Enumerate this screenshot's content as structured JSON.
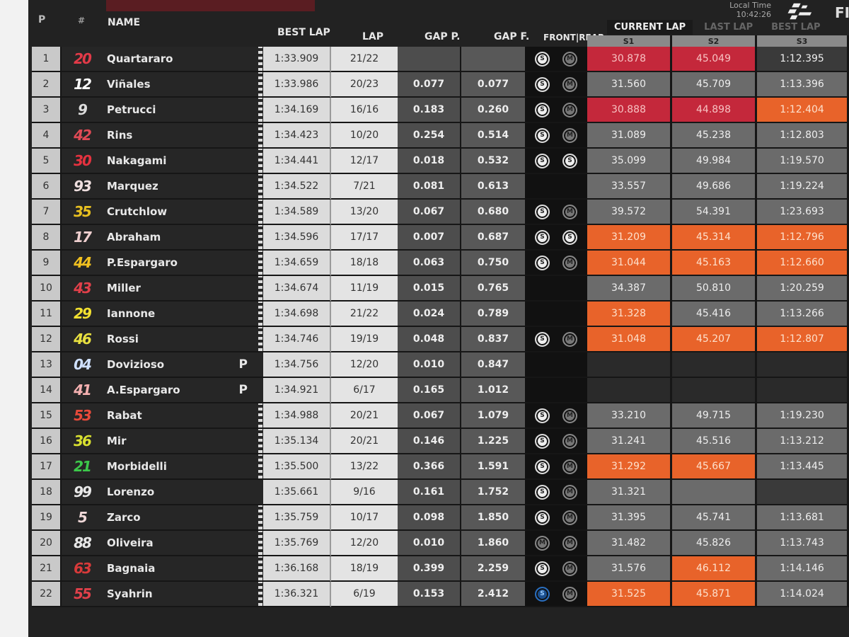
{
  "header": {
    "col_pos": "P",
    "col_num": "#",
    "col_name": "NAME",
    "col_best": "BEST LAP",
    "col_lap": "LAP",
    "col_gap_p": "GAP P.",
    "col_gap_f": "GAP F.",
    "col_tyres": "FRONT|REAR",
    "local_time_label": "Local Time",
    "local_time": "10:42:26",
    "logo_text": "MotoGP",
    "partial_text": "FI",
    "tabs": [
      "CURRENT LAP",
      "LAST LAP",
      "BEST LAP"
    ],
    "active_tab": "CURRENT LAP",
    "sectors": [
      "S1",
      "S2",
      "S3"
    ]
  },
  "colors": {
    "personal_best": "#e8632a",
    "overall_best": "#c4283b",
    "normal": "#6b6b6b"
  },
  "riders": [
    {
      "pos": "1",
      "num": "20",
      "num_color": "#e23a48",
      "name": "Quartararo",
      "pit": "",
      "flag": true,
      "best": "1:33.909",
      "lap": "21/22",
      "gap_p": "",
      "gap_f": "",
      "front": "S",
      "rear": "M",
      "s": [
        [
          "30.878",
          "red"
        ],
        [
          "45.049",
          "red"
        ],
        [
          "1:12.395",
          "dark"
        ]
      ]
    },
    {
      "pos": "2",
      "num": "12",
      "num_color": "#ffffff",
      "name": "Viñales",
      "pit": "",
      "flag": true,
      "best": "1:33.986",
      "lap": "20/23",
      "gap_p": "0.077",
      "gap_f": "0.077",
      "front": "S",
      "rear": "M",
      "s": [
        [
          "31.560",
          "grey"
        ],
        [
          "45.709",
          "grey"
        ],
        [
          "1:13.396",
          "grey"
        ]
      ]
    },
    {
      "pos": "3",
      "num": "9",
      "num_color": "#dddddd",
      "name": "Petrucci",
      "pit": "",
      "flag": true,
      "best": "1:34.169",
      "lap": "16/16",
      "gap_p": "0.183",
      "gap_f": "0.260",
      "front": "S",
      "rear": "M",
      "s": [
        [
          "30.888",
          "red"
        ],
        [
          "44.898",
          "red"
        ],
        [
          "1:12.404",
          "orange"
        ]
      ]
    },
    {
      "pos": "4",
      "num": "42",
      "num_color": "#e04a55",
      "name": "Rins",
      "pit": "",
      "flag": true,
      "best": "1:34.423",
      "lap": "10/20",
      "gap_p": "0.254",
      "gap_f": "0.514",
      "front": "S",
      "rear": "M",
      "s": [
        [
          "31.089",
          "grey"
        ],
        [
          "45.238",
          "grey"
        ],
        [
          "1:12.803",
          "grey"
        ]
      ]
    },
    {
      "pos": "5",
      "num": "30",
      "num_color": "#e5323f",
      "name": "Nakagami",
      "pit": "",
      "flag": true,
      "best": "1:34.441",
      "lap": "12/17",
      "gap_p": "0.018",
      "gap_f": "0.532",
      "front": "S",
      "rear": "S",
      "s": [
        [
          "35.099",
          "grey"
        ],
        [
          "49.984",
          "grey"
        ],
        [
          "1:19.570",
          "grey"
        ]
      ]
    },
    {
      "pos": "6",
      "num": "93",
      "num_color": "#f0e0e0",
      "name": "Marquez",
      "pit": "",
      "flag": true,
      "best": "1:34.522",
      "lap": "7/21",
      "gap_p": "0.081",
      "gap_f": "0.613",
      "front": "",
      "rear": "",
      "s": [
        [
          "33.557",
          "grey"
        ],
        [
          "49.686",
          "grey"
        ],
        [
          "1:19.224",
          "grey"
        ]
      ]
    },
    {
      "pos": "7",
      "num": "35",
      "num_color": "#e8c020",
      "name": "Crutchlow",
      "pit": "",
      "flag": true,
      "best": "1:34.589",
      "lap": "13/20",
      "gap_p": "0.067",
      "gap_f": "0.680",
      "front": "S",
      "rear": "M",
      "s": [
        [
          "39.572",
          "grey"
        ],
        [
          "54.391",
          "grey"
        ],
        [
          "1:23.693",
          "grey"
        ]
      ]
    },
    {
      "pos": "8",
      "num": "17",
      "num_color": "#f0d0d0",
      "name": "Abraham",
      "pit": "",
      "flag": true,
      "best": "1:34.596",
      "lap": "17/17",
      "gap_p": "0.007",
      "gap_f": "0.687",
      "front": "S",
      "rear": "S",
      "s": [
        [
          "31.209",
          "orange"
        ],
        [
          "45.314",
          "orange"
        ],
        [
          "1:12.796",
          "orange"
        ]
      ]
    },
    {
      "pos": "9",
      "num": "44",
      "num_color": "#f0c020",
      "name": "P.Espargaro",
      "pit": "",
      "flag": true,
      "best": "1:34.659",
      "lap": "18/18",
      "gap_p": "0.063",
      "gap_f": "0.750",
      "front": "S",
      "rear": "M",
      "s": [
        [
          "31.044",
          "orange"
        ],
        [
          "45.163",
          "orange"
        ],
        [
          "1:12.660",
          "orange"
        ]
      ]
    },
    {
      "pos": "10",
      "num": "43",
      "num_color": "#e0404a",
      "name": "Miller",
      "pit": "",
      "flag": true,
      "best": "1:34.674",
      "lap": "11/19",
      "gap_p": "0.015",
      "gap_f": "0.765",
      "front": "",
      "rear": "",
      "s": [
        [
          "34.387",
          "grey"
        ],
        [
          "50.810",
          "grey"
        ],
        [
          "1:20.259",
          "grey"
        ]
      ]
    },
    {
      "pos": "11",
      "num": "29",
      "num_color": "#f2e030",
      "name": "Iannone",
      "pit": "",
      "flag": true,
      "best": "1:34.698",
      "lap": "21/22",
      "gap_p": "0.024",
      "gap_f": "0.789",
      "front": "",
      "rear": "",
      "s": [
        [
          "31.328",
          "orange"
        ],
        [
          "45.416",
          "grey"
        ],
        [
          "1:13.266",
          "grey"
        ]
      ]
    },
    {
      "pos": "12",
      "num": "46",
      "num_color": "#e8e040",
      "name": "Rossi",
      "pit": "",
      "flag": true,
      "best": "1:34.746",
      "lap": "19/19",
      "gap_p": "0.048",
      "gap_f": "0.837",
      "front": "S",
      "rear": "M",
      "s": [
        [
          "31.048",
          "orange"
        ],
        [
          "45.207",
          "orange"
        ],
        [
          "1:12.807",
          "orange"
        ]
      ]
    },
    {
      "pos": "13",
      "num": "04",
      "num_color": "#cfe0ff",
      "name": "Dovizioso",
      "pit": "P",
      "flag": false,
      "best": "1:34.756",
      "lap": "12/20",
      "gap_p": "0.010",
      "gap_f": "0.847",
      "front": "",
      "rear": "",
      "s": [
        [
          "",
          "empty"
        ],
        [
          "",
          "empty"
        ],
        [
          "",
          "empty"
        ]
      ]
    },
    {
      "pos": "14",
      "num": "41",
      "num_color": "#f4b0b0",
      "name": "A.Espargaro",
      "pit": "P",
      "flag": false,
      "best": "1:34.921",
      "lap": "6/17",
      "gap_p": "0.165",
      "gap_f": "1.012",
      "front": "",
      "rear": "",
      "s": [
        [
          "",
          "empty"
        ],
        [
          "",
          "empty"
        ],
        [
          "",
          "empty"
        ]
      ]
    },
    {
      "pos": "15",
      "num": "53",
      "num_color": "#e84a3a",
      "name": "Rabat",
      "pit": "",
      "flag": true,
      "best": "1:34.988",
      "lap": "20/21",
      "gap_p": "0.067",
      "gap_f": "1.079",
      "front": "S",
      "rear": "M",
      "s": [
        [
          "33.210",
          "grey"
        ],
        [
          "49.715",
          "grey"
        ],
        [
          "1:19.230",
          "grey"
        ]
      ]
    },
    {
      "pos": "16",
      "num": "36",
      "num_color": "#d8e030",
      "name": "Mir",
      "pit": "",
      "flag": true,
      "best": "1:35.134",
      "lap": "20/21",
      "gap_p": "0.146",
      "gap_f": "1.225",
      "front": "S",
      "rear": "M",
      "s": [
        [
          "31.241",
          "grey"
        ],
        [
          "45.516",
          "grey"
        ],
        [
          "1:13.212",
          "grey"
        ]
      ]
    },
    {
      "pos": "17",
      "num": "21",
      "num_color": "#3cc84a",
      "name": "Morbidelli",
      "pit": "",
      "flag": true,
      "best": "1:35.500",
      "lap": "13/22",
      "gap_p": "0.366",
      "gap_f": "1.591",
      "front": "S",
      "rear": "M",
      "s": [
        [
          "31.292",
          "orange"
        ],
        [
          "45.667",
          "orange"
        ],
        [
          "1:13.445",
          "grey"
        ]
      ]
    },
    {
      "pos": "18",
      "num": "99",
      "num_color": "#e8e8e8",
      "name": "Lorenzo",
      "pit": "",
      "flag": false,
      "best": "1:35.661",
      "lap": "9/16",
      "gap_p": "0.161",
      "gap_f": "1.752",
      "front": "S",
      "rear": "M",
      "s": [
        [
          "31.321",
          "grey"
        ],
        [
          "",
          "grey"
        ],
        [
          "",
          "dark"
        ]
      ]
    },
    {
      "pos": "19",
      "num": "5",
      "num_color": "#f0d8d8",
      "name": "Zarco",
      "pit": "",
      "flag": true,
      "best": "1:35.759",
      "lap": "10/17",
      "gap_p": "0.098",
      "gap_f": "1.850",
      "front": "S",
      "rear": "M",
      "s": [
        [
          "31.395",
          "grey"
        ],
        [
          "45.741",
          "grey"
        ],
        [
          "1:13.681",
          "grey"
        ]
      ]
    },
    {
      "pos": "20",
      "num": "88",
      "num_color": "#e8e8e8",
      "name": "Oliveira",
      "pit": "",
      "flag": true,
      "best": "1:35.769",
      "lap": "12/20",
      "gap_p": "0.010",
      "gap_f": "1.860",
      "front": "M",
      "rear": "M",
      "s": [
        [
          "31.482",
          "grey"
        ],
        [
          "45.826",
          "grey"
        ],
        [
          "1:13.743",
          "grey"
        ]
      ]
    },
    {
      "pos": "21",
      "num": "63",
      "num_color": "#d83a3a",
      "name": "Bagnaia",
      "pit": "",
      "flag": true,
      "best": "1:36.168",
      "lap": "18/19",
      "gap_p": "0.399",
      "gap_f": "2.259",
      "front": "S",
      "rear": "M",
      "s": [
        [
          "31.576",
          "grey"
        ],
        [
          "46.112",
          "orange"
        ],
        [
          "1:14.146",
          "grey"
        ]
      ]
    },
    {
      "pos": "22",
      "num": "55",
      "num_color": "#e0404a",
      "name": "Syahrin",
      "pit": "",
      "flag": true,
      "best": "1:36.321",
      "lap": "6/19",
      "gap_p": "0.153",
      "gap_f": "2.412",
      "front": "S-blue",
      "rear": "M",
      "s": [
        [
          "31.525",
          "orange"
        ],
        [
          "45.871",
          "orange"
        ],
        [
          "1:14.024",
          "grey"
        ]
      ]
    }
  ]
}
